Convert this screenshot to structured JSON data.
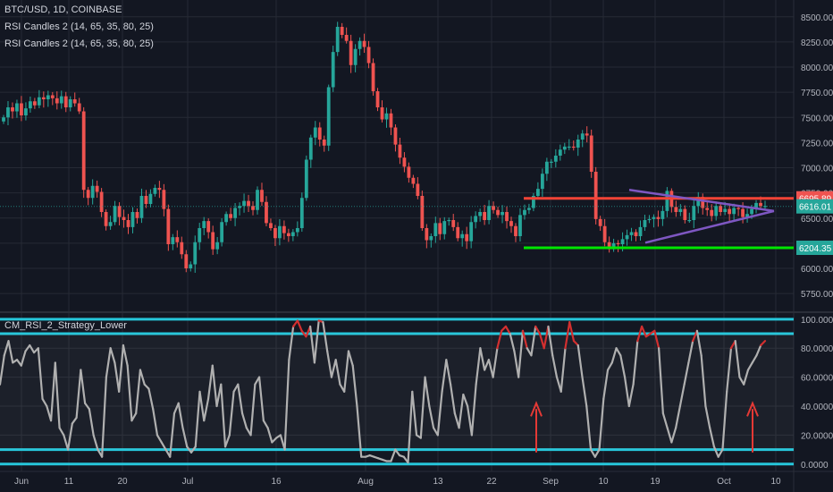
{
  "legend": {
    "symbol": "BTC/USD, 1D, COINBASE",
    "ind1": "RSI Candles 2 (14, 65, 35, 80, 25)",
    "ind2": "RSI Candles 2 (14, 65, 35, 80, 25)",
    "lower": "CM_RSI_2_Strategy_Lower"
  },
  "colors": {
    "bg": "#131722",
    "grid": "#262a35",
    "up": "#26a69a",
    "down": "#ef5350",
    "rsi_line": "#b0b0b0",
    "rsi_hot": "#d32f2f",
    "bands": "#26c6da",
    "resistance": "#f44336",
    "support": "#00e600",
    "triangle": "#7e57c2",
    "arrow": "#e53935"
  },
  "chart_data": [
    {
      "type": "candlestick",
      "y_ticks": [
        "8500.00",
        "8250.00",
        "8000.00",
        "7750.00",
        "7500.00",
        "7250.00",
        "7000.00",
        "6750.00",
        "6500.00",
        "6250.00",
        "6000.00",
        "5750.00"
      ],
      "ylim": [
        5600,
        8560
      ],
      "x_ticks": [
        "Jun",
        "11",
        "20",
        "Jul",
        "16",
        "Aug",
        "13",
        "22",
        "Sep",
        "10",
        "19",
        "Oct",
        "10"
      ],
      "price_labels": [
        {
          "value": 6695.89,
          "text": "6695.89",
          "color": "#ef5350"
        },
        {
          "value": 6616.01,
          "text": "6616.01",
          "color": "#26a69a"
        },
        {
          "value": 6204.35,
          "text": "6204.35",
          "color": "#26a69a"
        }
      ],
      "resistance": 6695.89,
      "support": 6204.35,
      "closes": [
        7500,
        7600,
        7560,
        7640,
        7520,
        7590,
        7660,
        7620,
        7700,
        7680,
        7720,
        7690,
        7640,
        7710,
        7600,
        7680,
        7640,
        7560,
        6780,
        6700,
        6820,
        6760,
        6560,
        6420,
        6460,
        6620,
        6510,
        6480,
        6410,
        6560,
        6500,
        6720,
        6640,
        6740,
        6800,
        6780,
        6590,
        6240,
        6310,
        6260,
        6140,
        6000,
        6040,
        6260,
        6400,
        6470,
        6360,
        6190,
        6260,
        6460,
        6540,
        6500,
        6600,
        6620,
        6670,
        6620,
        6580,
        6780,
        6660,
        6450,
        6400,
        6300,
        6420,
        6350,
        6320,
        6360,
        6400,
        6700,
        7080,
        7300,
        7400,
        7280,
        7220,
        7800,
        8150,
        8400,
        8320,
        8260,
        8020,
        8180,
        8260,
        8200,
        8040,
        7760,
        7600,
        7480,
        7540,
        7400,
        7230,
        7100,
        7010,
        6900,
        6840,
        6720,
        6400,
        6280,
        6320,
        6450,
        6340,
        6470,
        6480,
        6410,
        6300,
        6340,
        6270,
        6460,
        6520,
        6560,
        6480,
        6620,
        6580,
        6530,
        6560,
        6470,
        6420,
        6320,
        6530,
        6580,
        6600,
        6720,
        6790,
        6940,
        7060,
        7060,
        7120,
        7180,
        7210,
        7210,
        7200,
        7280,
        7340,
        7320,
        6960,
        6490,
        6420,
        6260,
        6190,
        6250,
        6240,
        6290,
        6330,
        6360,
        6320,
        6410,
        6480,
        6490,
        6510,
        6490,
        6570,
        6770,
        6610,
        6560,
        6590,
        6480,
        6480,
        6620,
        6710,
        6600,
        6580,
        6520,
        6620,
        6560,
        6590,
        6540,
        6600,
        6590,
        6510,
        6540,
        6590,
        6650,
        6620,
        6620
      ]
    },
    {
      "type": "line",
      "name": "CM_RSI_2_Strategy_Lower",
      "y_ticks": [
        "100.0000",
        "80.0000",
        "60.0000",
        "40.0000",
        "20.0000",
        "0.0000"
      ],
      "ylim": [
        -2,
        103
      ],
      "bands": [
        100,
        90,
        10,
        0
      ],
      "values": [
        55,
        75,
        85,
        70,
        72,
        68,
        78,
        82,
        77,
        80,
        45,
        40,
        30,
        70,
        25,
        20,
        10,
        28,
        32,
        65,
        42,
        38,
        20,
        10,
        5,
        60,
        80,
        70,
        50,
        82,
        68,
        30,
        35,
        65,
        55,
        52,
        38,
        20,
        15,
        10,
        5,
        35,
        42,
        25,
        12,
        8,
        12,
        50,
        30,
        45,
        68,
        40,
        55,
        12,
        20,
        50,
        55,
        35,
        25,
        20,
        55,
        60,
        30,
        25,
        15,
        18,
        20,
        10,
        72,
        95,
        99,
        92,
        88,
        95,
        70,
        99,
        98,
        78,
        60,
        72,
        55,
        50,
        78,
        68,
        40,
        5,
        5,
        6,
        5,
        4,
        3,
        2,
        2,
        10,
        6,
        5,
        1,
        50,
        20,
        18,
        60,
        40,
        25,
        20,
        50,
        72,
        55,
        35,
        25,
        48,
        40,
        20,
        55,
        80,
        65,
        72,
        60,
        80,
        92,
        95,
        90,
        78,
        60,
        92,
        80,
        75,
        95,
        90,
        80,
        95,
        75,
        60,
        50,
        80,
        98,
        85,
        82,
        60,
        40,
        10,
        5,
        10,
        45,
        65,
        70,
        80,
        75,
        60,
        40,
        55,
        85,
        95,
        88,
        90,
        92,
        80,
        35,
        25,
        15,
        25,
        40,
        55,
        70,
        85,
        92,
        75,
        40,
        25,
        12,
        5,
        10,
        50,
        80,
        85,
        60,
        55,
        65,
        70,
        75,
        82,
        85
      ]
    }
  ]
}
